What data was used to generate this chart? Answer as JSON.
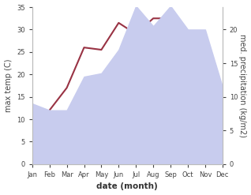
{
  "months": [
    "Jan",
    "Feb",
    "Mar",
    "Apr",
    "May",
    "Jun",
    "Jul",
    "Aug",
    "Sep",
    "Oct",
    "Nov",
    "Dec"
  ],
  "month_positions": [
    0,
    1,
    2,
    3,
    4,
    5,
    6,
    7,
    8,
    9,
    10,
    11
  ],
  "temperature": [
    7.5,
    12.0,
    17.0,
    26.0,
    25.5,
    31.5,
    29.0,
    32.5,
    32.5,
    27.5,
    29.0,
    10.5
  ],
  "precipitation": [
    9.0,
    8.0,
    8.0,
    13.0,
    13.5,
    17.0,
    23.5,
    20.5,
    23.5,
    20.0,
    20.0,
    11.5
  ],
  "temp_color": "#993344",
  "precip_fill_color": "#c8ccee",
  "temp_ylim": [
    0,
    35
  ],
  "temp_yticks": [
    0,
    5,
    10,
    15,
    20,
    25,
    30,
    35
  ],
  "precip_ylim": [
    0,
    23.33
  ],
  "precip_yticks": [
    0,
    5,
    10,
    15,
    20
  ],
  "xlabel": "date (month)",
  "ylabel_left": "max temp (C)",
  "ylabel_right": "med. precipitation (kg/m2)",
  "background_color": "#ffffff",
  "figure_width": 3.18,
  "figure_height": 2.47,
  "dpi": 100
}
